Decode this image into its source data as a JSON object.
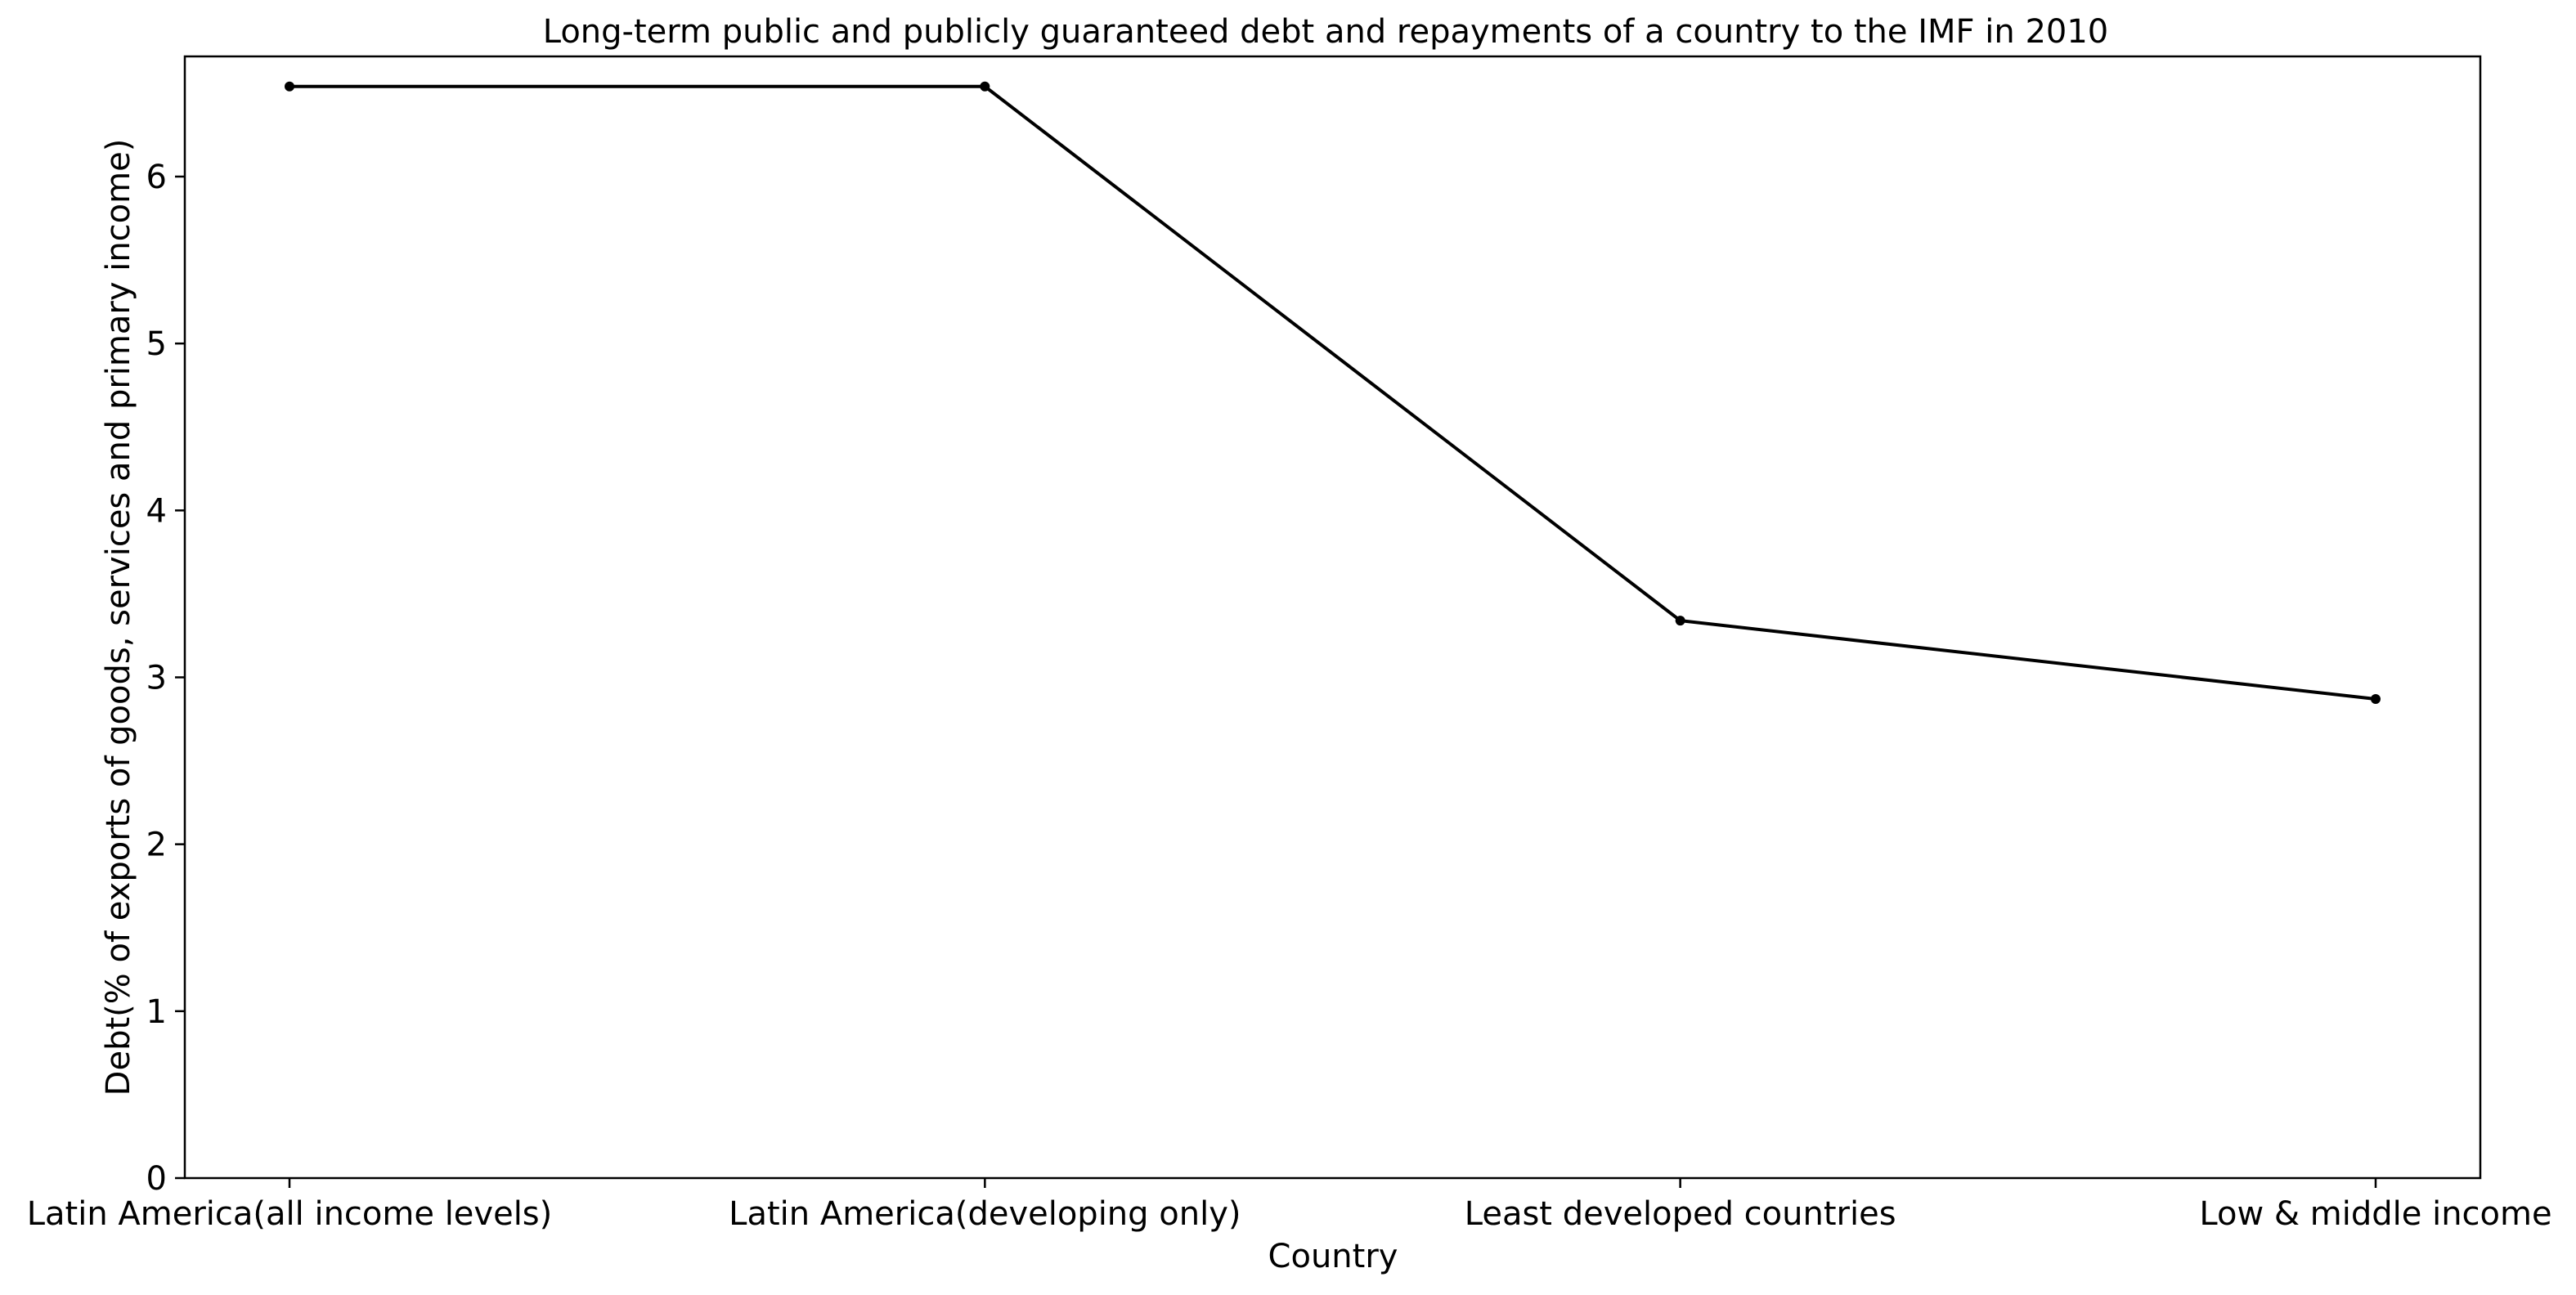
{
  "chart_data": {
    "type": "line",
    "title": "Long-term public and publicly guaranteed debt and repayments of a country to the IMF in 2010",
    "xlabel": "Country",
    "ylabel": "Debt(% of exports of goods, services and primary income)",
    "categories": [
      "Latin America(all income levels)",
      "Latin America(developing only)",
      "Least developed countries",
      "Low & middle income"
    ],
    "series": [
      {
        "values": [
          6.54,
          6.54,
          3.34,
          2.87
        ]
      }
    ],
    "ylim": [
      0,
      6.72
    ],
    "yticks": [
      0,
      1,
      2,
      3,
      4,
      5,
      6
    ],
    "grid": false,
    "colors": {
      "line": "#000000",
      "marker": "#000000",
      "axes": "#000000",
      "background": "#ffffff"
    }
  }
}
